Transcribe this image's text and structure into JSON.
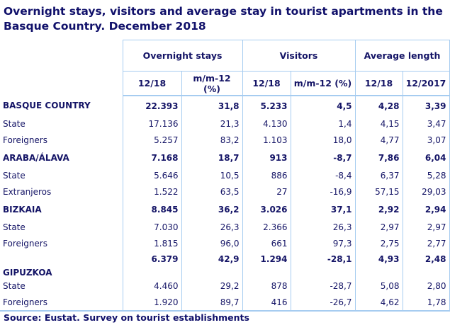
{
  "title": "Overnight stays, visitors and average stay in tourist apartments in the Basque Country. December 2018",
  "headers": {
    "group1": "Overnight stays",
    "group2": "Visitors",
    "group3": "Average length",
    "sub": [
      "12/18",
      "m/m-12 (%)",
      "12/18",
      "m/m-12 (%)",
      "12/18",
      "12/2017"
    ]
  },
  "rows": [
    {
      "label": "BASQUE COUNTRY",
      "values": [
        "22.393",
        "31,8",
        "5.233",
        "4,5",
        "4,28",
        "3,39"
      ],
      "type": "region"
    },
    {
      "label": "State",
      "values": [
        "17.136",
        "21,3",
        "4.130",
        "1,4",
        "4,15",
        "3,47"
      ]
    },
    {
      "label": "Foreigners",
      "values": [
        "5.257",
        "83,2",
        "1.103",
        "18,0",
        "4,77",
        "3,07"
      ]
    },
    {
      "label": "ARABA/ÁLAVA",
      "values": [
        "7.168",
        "18,7",
        "913",
        "-8,7",
        "7,86",
        "6,04"
      ],
      "type": "region"
    },
    {
      "label": "State",
      "values": [
        "5.646",
        "10,5",
        "886",
        "-8,4",
        "6,37",
        "5,28"
      ]
    },
    {
      "label": "Extranjeros",
      "values": [
        "1.522",
        "63,5",
        "27",
        "-16,9",
        "57,15",
        "29,03"
      ]
    },
    {
      "label": "BIZKAIA",
      "values": [
        "8.845",
        "36,2",
        "3.026",
        "37,1",
        "2,92",
        "2,94"
      ],
      "type": "region"
    },
    {
      "label": "State",
      "values": [
        "7.030",
        "26,3",
        "2.366",
        "26,3",
        "2,97",
        "2,97"
      ]
    },
    {
      "label": "Foreigners",
      "values": [
        "1.815",
        "96,0",
        "661",
        "97,3",
        "2,75",
        "2,77"
      ]
    },
    {
      "label": "GIPUZKOA",
      "values": [
        "6.379",
        "42,9",
        "1.294",
        "-28,1",
        "4,93",
        "2,48"
      ],
      "type": "region"
    },
    {
      "label": "State",
      "values": [
        "4.460",
        "29,2",
        "878",
        "-28,7",
        "5,08",
        "2,80"
      ]
    },
    {
      "label": "Foreigners",
      "values": [
        "1.920",
        "89,7",
        "416",
        "-26,7",
        "4,62",
        "1,78"
      ]
    }
  ],
  "source": "Source: Eustat. Survey on tourist establishments"
}
